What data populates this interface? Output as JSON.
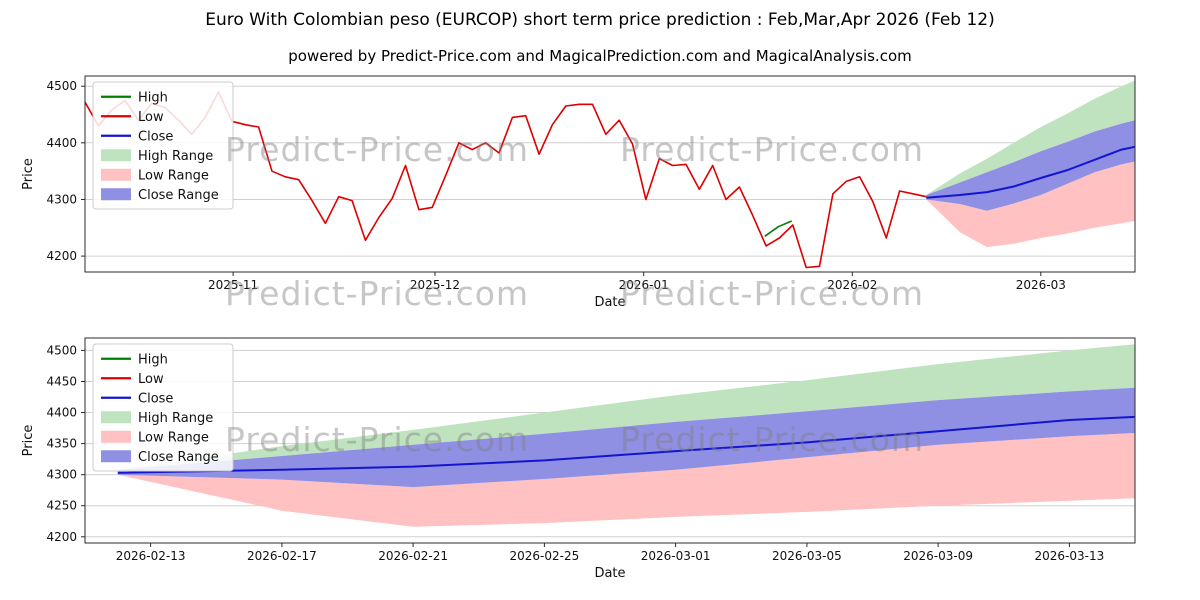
{
  "page": {
    "title": "Euro With Colombian peso (EURCOP) short term price prediction : Feb,Mar,Apr 2026 (Feb 12)",
    "subtitle": "powered by Predict-Price.com and MagicalPrediction.com and MagicalAnalysis.com",
    "watermark_text": "Predict-Price.com"
  },
  "colors": {
    "high_line": "#008000",
    "low_line": "#dd0000",
    "close_line": "#1515cf",
    "high_range_fill": "#bfe3bf",
    "low_range_fill": "#ffc1c1",
    "close_range_fill": "#8f8fe3",
    "grid": "#d0d0d0",
    "frame": "#2b2b2b",
    "tick_text": "#111111"
  },
  "legend": [
    {
      "label": "High",
      "swatch": "line",
      "color": "#008000"
    },
    {
      "label": "Low",
      "swatch": "line",
      "color": "#dd0000"
    },
    {
      "label": "Close",
      "swatch": "line",
      "color": "#1515cf"
    },
    {
      "label": "High Range",
      "swatch": "patch",
      "color": "#bfe3bf"
    },
    {
      "label": "Low Range",
      "swatch": "patch",
      "color": "#ffc1c1"
    },
    {
      "label": "Close Range",
      "swatch": "patch",
      "color": "#8f8fe3"
    }
  ],
  "chart_data": [
    {
      "id": "history",
      "type": "line",
      "title": "",
      "xlabel": "Date",
      "ylabel": "Price",
      "ylim": [
        4172,
        4518
      ],
      "yticks": [
        4200,
        4300,
        4400,
        4500
      ],
      "x_domain": [
        "2025-10-10",
        "2026-03-15"
      ],
      "grid": "horizontal",
      "legend_position": "upper left",
      "xticks": [
        {
          "date": "2025-11-01",
          "label": "2025-11"
        },
        {
          "date": "2025-12-01",
          "label": "2025-12"
        },
        {
          "date": "2026-01-01",
          "label": "2026-01"
        },
        {
          "date": "2026-02-01",
          "label": "2026-02"
        },
        {
          "date": "2026-03-01",
          "label": "2026-03"
        }
      ],
      "history": {
        "series_name": "Low",
        "start": "2025-10-10",
        "end": "2026-02-12",
        "values": [
          4472,
          4430,
          4458,
          4475,
          4440,
          4470,
          4462,
          4440,
          4415,
          4445,
          4490,
          4438,
          4432,
          4428,
          4350,
          4340,
          4335,
          4298,
          4258,
          4305,
          4298,
          4228,
          4268,
          4302,
          4360,
          4282,
          4286,
          4342,
          4400,
          4388,
          4400,
          4382,
          4445,
          4448,
          4380,
          4432,
          4465,
          4468,
          4468,
          4415,
          4440,
          4398,
          4300,
          4372,
          4360,
          4362,
          4318,
          4360,
          4300,
          4322,
          4272,
          4218,
          4232,
          4255,
          4180,
          4182,
          4310,
          4332,
          4340,
          4296,
          4232,
          4315,
          4310,
          4305
        ]
      },
      "high_segment": {
        "series_name": "High",
        "dates": [
          "2026-01-19",
          "2026-01-21",
          "2026-01-23"
        ],
        "values": [
          4235,
          4252,
          4262
        ]
      },
      "prediction": {
        "dates": [
          "2026-02-12",
          "2026-02-17",
          "2026-02-21",
          "2026-02-25",
          "2026-03-01",
          "2026-03-05",
          "2026-03-09",
          "2026-03-13",
          "2026-03-15"
        ],
        "high_range_upper": [
          4308,
          4346,
          4372,
          4400,
          4428,
          4452,
          4478,
          4500,
          4510
        ],
        "close_range_upper": [
          4308,
          4330,
          4348,
          4366,
          4385,
          4402,
          4420,
          4434,
          4440
        ],
        "close": [
          4303,
          4308,
          4313,
          4323,
          4338,
          4352,
          4370,
          4388,
          4393
        ],
        "close_range_lower": [
          4300,
          4292,
          4280,
          4293,
          4308,
          4328,
          4348,
          4362,
          4367
        ],
        "low_range_lower": [
          4300,
          4242,
          4216,
          4222,
          4232,
          4240,
          4250,
          4258,
          4262
        ]
      }
    },
    {
      "id": "forecast",
      "type": "area",
      "title": "",
      "xlabel": "Date",
      "ylabel": "Price",
      "ylim": [
        4190,
        4520
      ],
      "yticks": [
        4200,
        4250,
        4300,
        4350,
        4400,
        4450,
        4500
      ],
      "x_domain": [
        "2026-02-11",
        "2026-03-15"
      ],
      "grid": "horizontal",
      "legend_position": "upper left",
      "xticks": [
        {
          "date": "2026-02-13",
          "label": "2026-02-13"
        },
        {
          "date": "2026-02-17",
          "label": "2026-02-17"
        },
        {
          "date": "2026-02-21",
          "label": "2026-02-21"
        },
        {
          "date": "2026-02-25",
          "label": "2026-02-25"
        },
        {
          "date": "2026-03-01",
          "label": "2026-03-01"
        },
        {
          "date": "2026-03-05",
          "label": "2026-03-05"
        },
        {
          "date": "2026-03-09",
          "label": "2026-03-09"
        },
        {
          "date": "2026-03-13",
          "label": "2026-03-13"
        }
      ],
      "prediction": {
        "dates": [
          "2026-02-12",
          "2026-02-17",
          "2026-02-21",
          "2026-02-25",
          "2026-03-01",
          "2026-03-05",
          "2026-03-09",
          "2026-03-13",
          "2026-03-15"
        ],
        "high_range_upper": [
          4308,
          4346,
          4372,
          4400,
          4428,
          4452,
          4478,
          4500,
          4510
        ],
        "close_range_upper": [
          4308,
          4330,
          4348,
          4366,
          4385,
          4402,
          4420,
          4434,
          4440
        ],
        "close": [
          4303,
          4308,
          4313,
          4323,
          4338,
          4352,
          4370,
          4388,
          4393
        ],
        "close_range_lower": [
          4300,
          4292,
          4280,
          4293,
          4308,
          4328,
          4348,
          4362,
          4367
        ],
        "low_range_lower": [
          4300,
          4242,
          4216,
          4222,
          4232,
          4240,
          4250,
          4258,
          4262
        ]
      }
    }
  ]
}
